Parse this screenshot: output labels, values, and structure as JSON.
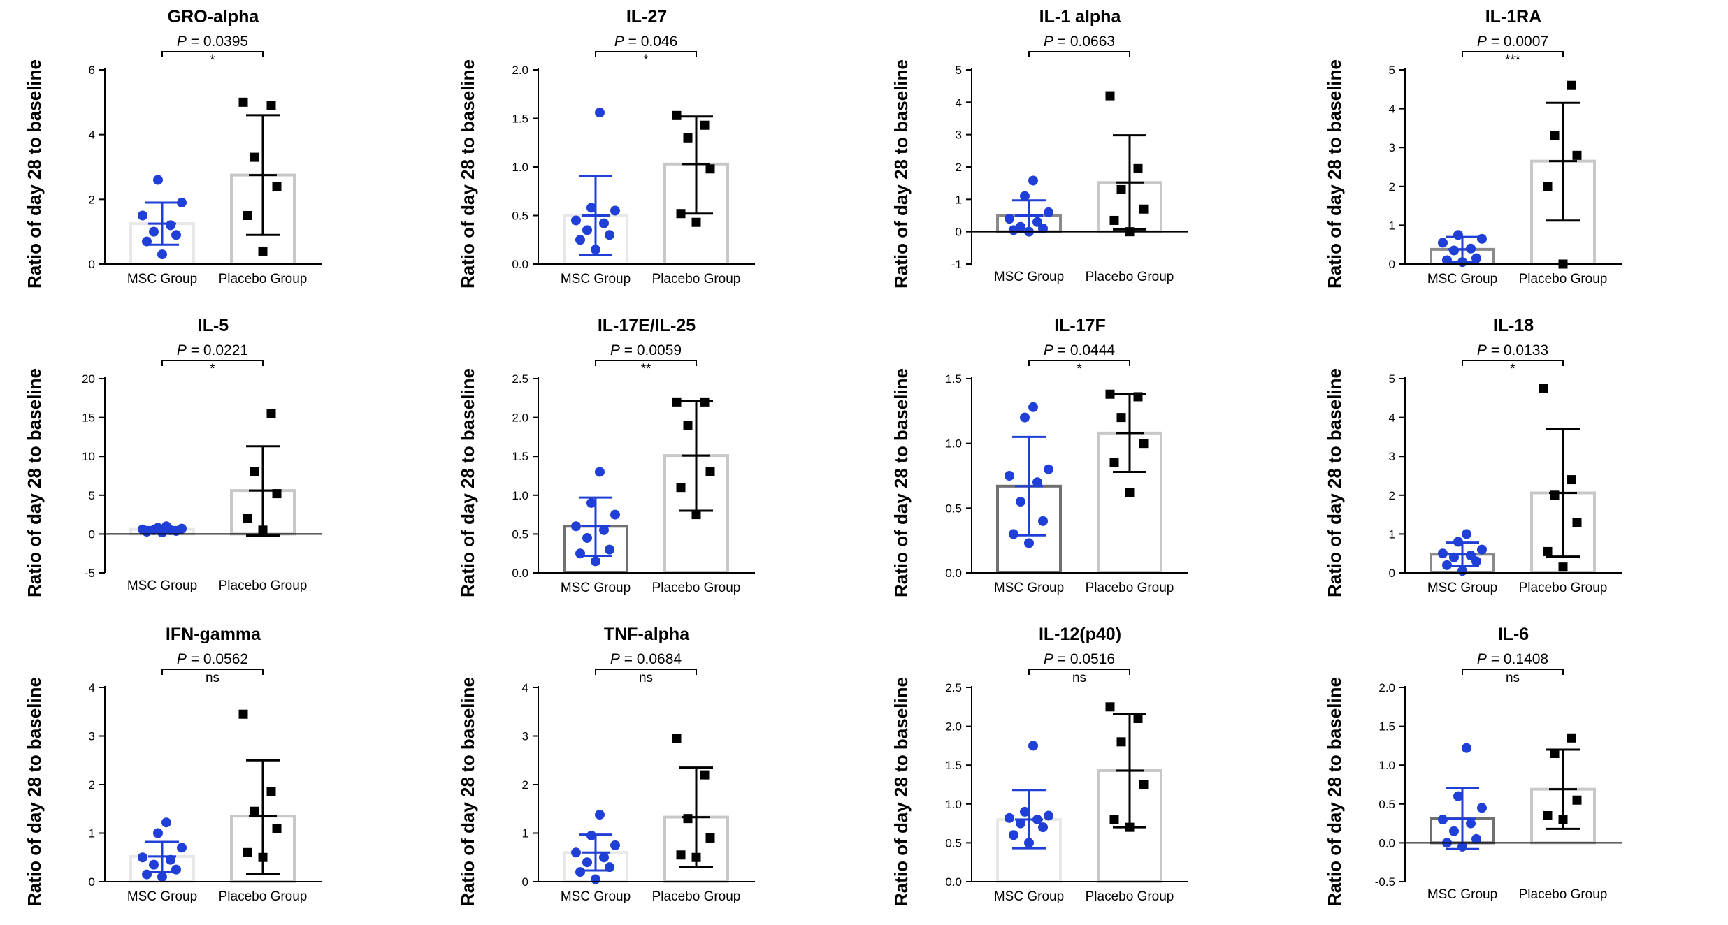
{
  "figure": {
    "y_axis_label": "Ratio of day 28 to baseline",
    "categories": [
      "MSC Group",
      "Placebo Group"
    ],
    "colors": {
      "msc_points": "#1f3fd6",
      "msc_error": "#1f3fd6",
      "placebo_points": "#000000",
      "placebo_error": "#000000"
    }
  },
  "chart_data": [
    {
      "type": "bar",
      "title": "GRO-alpha",
      "ylabel": "Ratio of day 28 to baseline",
      "categories": [
        "MSC Group",
        "Placebo Group"
      ],
      "ylim": [
        0,
        6
      ],
      "yticks": [
        0,
        2,
        4,
        6
      ],
      "tick_labels": [
        "0",
        "2",
        "4",
        "6"
      ],
      "p_prefix": "P",
      "p_text": " = 0.0395",
      "significance": "*",
      "series": [
        {
          "name": "MSC Group",
          "mean": 1.25,
          "sd_low": 0.6,
          "sd_high": 1.9,
          "bar_color": "#e8e8e8",
          "points": [
            0.3,
            0.7,
            0.9,
            1.0,
            1.2,
            1.5,
            1.9,
            2.6
          ]
        },
        {
          "name": "Placebo Group",
          "mean": 2.75,
          "sd_low": 0.9,
          "sd_high": 4.6,
          "bar_color": "#c8c8c8",
          "points": [
            0.4,
            1.5,
            2.4,
            3.3,
            4.9,
            5.0
          ]
        }
      ]
    },
    {
      "type": "bar",
      "title": "IL-27",
      "ylabel": "Ratio of day 28 to baseline",
      "categories": [
        "MSC Group",
        "Placebo Group"
      ],
      "ylim": [
        0,
        2.0
      ],
      "yticks": [
        0,
        0.5,
        1.0,
        1.5,
        2.0
      ],
      "tick_labels": [
        "0.0",
        "0.5",
        "1.0",
        "1.5",
        "2.0"
      ],
      "p_prefix": "P",
      "p_text": " = 0.046",
      "significance": "*",
      "series": [
        {
          "name": "MSC Group",
          "mean": 0.5,
          "sd_low": 0.09,
          "sd_high": 0.91,
          "bar_color": "#e8e8e8",
          "points": [
            0.15,
            0.25,
            0.3,
            0.35,
            0.42,
            0.45,
            0.55,
            0.58,
            1.56
          ]
        },
        {
          "name": "Placebo Group",
          "mean": 1.03,
          "sd_low": 0.52,
          "sd_high": 1.52,
          "bar_color": "#c8c8c8",
          "points": [
            0.43,
            0.52,
            0.98,
            1.3,
            1.43,
            1.53
          ]
        }
      ]
    },
    {
      "type": "bar",
      "title": "IL-1 alpha",
      "ylabel": "Ratio of day 28 to baseline",
      "categories": [
        "MSC Group",
        "Placebo Group"
      ],
      "ylim": [
        -1,
        5
      ],
      "yticks": [
        -1,
        0,
        1,
        2,
        3,
        4,
        5
      ],
      "tick_labels": [
        "-1",
        "0",
        "1",
        "2",
        "3",
        "4",
        "5"
      ],
      "p_prefix": "P",
      "p_text": " = 0.0663",
      "significance": "",
      "series": [
        {
          "name": "MSC Group",
          "mean": 0.5,
          "sd_low": 0.0,
          "sd_high": 0.97,
          "bar_color": "#8a8a8a",
          "points": [
            0.0,
            0.05,
            0.1,
            0.15,
            0.3,
            0.4,
            0.6,
            1.1,
            1.58
          ]
        },
        {
          "name": "Placebo Group",
          "mean": 1.52,
          "sd_low": 0.07,
          "sd_high": 2.98,
          "bar_color": "#c8c8c8",
          "points": [
            0.0,
            0.35,
            0.7,
            1.3,
            1.95,
            4.2
          ]
        }
      ]
    },
    {
      "type": "bar",
      "title": "IL-1RA",
      "ylabel": "Ratio of day 28 to baseline",
      "categories": [
        "MSC Group",
        "Placebo Group"
      ],
      "ylim": [
        0,
        5
      ],
      "yticks": [
        0,
        1,
        2,
        3,
        4,
        5
      ],
      "tick_labels": [
        "0",
        "1",
        "2",
        "3",
        "4",
        "5"
      ],
      "p_prefix": "P",
      "p_text": " = 0.0007",
      "significance": "***",
      "series": [
        {
          "name": "MSC Group",
          "mean": 0.38,
          "sd_low": 0.05,
          "sd_high": 0.7,
          "bar_color": "#8a8a8a",
          "points": [
            0.05,
            0.1,
            0.15,
            0.35,
            0.4,
            0.55,
            0.65,
            0.75
          ]
        },
        {
          "name": "Placebo Group",
          "mean": 2.65,
          "sd_low": 1.12,
          "sd_high": 4.15,
          "bar_color": "#c8c8c8",
          "points": [
            0.0,
            2.0,
            2.8,
            3.3,
            4.6
          ]
        }
      ]
    },
    {
      "type": "bar",
      "title": "IL-5",
      "ylabel": "Ratio of day 28 to baseline",
      "categories": [
        "MSC Group",
        "Placebo Group"
      ],
      "ylim": [
        -5,
        20
      ],
      "yticks": [
        -5,
        0,
        5,
        10,
        15,
        20
      ],
      "tick_labels": [
        "-5",
        "0",
        "5",
        "10",
        "15",
        "20"
      ],
      "p_prefix": "P",
      "p_text": " = 0.0221",
      "significance": "*",
      "series": [
        {
          "name": "MSC Group",
          "mean": 0.6,
          "sd_low": 0.3,
          "sd_high": 0.9,
          "bar_color": "#e8e8e8",
          "points": [
            0.2,
            0.3,
            0.4,
            0.5,
            0.5,
            0.6,
            0.7,
            0.8,
            1.0
          ]
        },
        {
          "name": "Placebo Group",
          "mean": 5.6,
          "sd_low": -0.2,
          "sd_high": 11.3,
          "bar_color": "#c8c8c8",
          "points": [
            0.5,
            2.0,
            5.2,
            8.0,
            15.5
          ]
        }
      ]
    },
    {
      "type": "bar",
      "title": "IL-17E/IL-25",
      "ylabel": "Ratio of day 28 to baseline",
      "categories": [
        "MSC Group",
        "Placebo Group"
      ],
      "ylim": [
        0,
        2.5
      ],
      "yticks": [
        0,
        0.5,
        1.0,
        1.5,
        2.0,
        2.5
      ],
      "tick_labels": [
        "0.0",
        "0.5",
        "1.0",
        "1.5",
        "2.0",
        "2.5"
      ],
      "p_prefix": "P",
      "p_text": " = 0.0059",
      "significance": "**",
      "series": [
        {
          "name": "MSC Group",
          "mean": 0.6,
          "sd_low": 0.22,
          "sd_high": 0.97,
          "bar_color": "#707070",
          "points": [
            0.15,
            0.25,
            0.3,
            0.45,
            0.55,
            0.6,
            0.75,
            0.9,
            1.3
          ]
        },
        {
          "name": "Placebo Group",
          "mean": 1.51,
          "sd_low": 0.8,
          "sd_high": 2.21,
          "bar_color": "#c8c8c8",
          "points": [
            0.75,
            1.1,
            1.3,
            1.9,
            2.2,
            2.2
          ]
        }
      ]
    },
    {
      "type": "bar",
      "title": "IL-17F",
      "ylabel": "Ratio of day 28 to baseline",
      "categories": [
        "MSC Group",
        "Placebo Group"
      ],
      "ylim": [
        0,
        1.5
      ],
      "yticks": [
        0,
        0.5,
        1.0,
        1.5
      ],
      "tick_labels": [
        "0.0",
        "0.5",
        "1.0",
        "1.5"
      ],
      "p_prefix": "P",
      "p_text": " = 0.0444",
      "significance": "*",
      "series": [
        {
          "name": "MSC Group",
          "mean": 0.67,
          "sd_low": 0.29,
          "sd_high": 1.05,
          "bar_color": "#707070",
          "points": [
            0.23,
            0.3,
            0.4,
            0.55,
            0.7,
            0.75,
            0.8,
            1.2,
            1.28
          ]
        },
        {
          "name": "Placebo Group",
          "mean": 1.08,
          "sd_low": 0.78,
          "sd_high": 1.38,
          "bar_color": "#c8c8c8",
          "points": [
            0.62,
            0.85,
            1.0,
            1.2,
            1.36,
            1.38
          ]
        }
      ]
    },
    {
      "type": "bar",
      "title": "IL-18",
      "ylabel": "Ratio of day 28 to baseline",
      "categories": [
        "MSC Group",
        "Placebo Group"
      ],
      "ylim": [
        0,
        5
      ],
      "yticks": [
        0,
        1,
        2,
        3,
        4,
        5
      ],
      "tick_labels": [
        "0",
        "1",
        "2",
        "3",
        "4",
        "5"
      ],
      "p_prefix": "P",
      "p_text": " = 0.0133",
      "significance": "*",
      "series": [
        {
          "name": "MSC Group",
          "mean": 0.48,
          "sd_low": 0.18,
          "sd_high": 0.78,
          "bar_color": "#8a8a8a",
          "points": [
            0.05,
            0.2,
            0.3,
            0.4,
            0.45,
            0.5,
            0.6,
            0.8,
            1.0
          ]
        },
        {
          "name": "Placebo Group",
          "mean": 2.06,
          "sd_low": 0.42,
          "sd_high": 3.7,
          "bar_color": "#c8c8c8",
          "points": [
            0.15,
            0.55,
            1.3,
            2.0,
            2.4,
            4.75
          ]
        }
      ]
    },
    {
      "type": "bar",
      "title": "IFN-gamma",
      "ylabel": "Ratio of day 28 to baseline",
      "categories": [
        "MSC Group",
        "Placebo Group"
      ],
      "ylim": [
        0,
        4
      ],
      "yticks": [
        0,
        1,
        2,
        3,
        4
      ],
      "tick_labels": [
        "0",
        "1",
        "2",
        "3",
        "4"
      ],
      "p_prefix": "P",
      "p_text": " = 0.0562",
      "significance": "ns",
      "series": [
        {
          "name": "MSC Group",
          "mean": 0.52,
          "sd_low": 0.2,
          "sd_high": 0.82,
          "bar_color": "#e8e8e8",
          "points": [
            0.1,
            0.15,
            0.25,
            0.35,
            0.45,
            0.5,
            0.7,
            1.0,
            1.22
          ]
        },
        {
          "name": "Placebo Group",
          "mean": 1.35,
          "sd_low": 0.16,
          "sd_high": 2.5,
          "bar_color": "#c8c8c8",
          "points": [
            0.5,
            0.6,
            1.1,
            1.45,
            1.85,
            3.45
          ]
        }
      ]
    },
    {
      "type": "bar",
      "title": "TNF-alpha",
      "ylabel": "Ratio of day 28 to baseline",
      "categories": [
        "MSC Group",
        "Placebo Group"
      ],
      "ylim": [
        0,
        4
      ],
      "yticks": [
        0,
        1,
        2,
        3,
        4
      ],
      "tick_labels": [
        "0",
        "1",
        "2",
        "3",
        "4"
      ],
      "p_prefix": "P",
      "p_text": " = 0.0684",
      "significance": "ns",
      "series": [
        {
          "name": "MSC Group",
          "mean": 0.6,
          "sd_low": 0.23,
          "sd_high": 0.97,
          "bar_color": "#e8e8e8",
          "points": [
            0.05,
            0.2,
            0.3,
            0.4,
            0.5,
            0.6,
            0.75,
            0.95,
            1.38
          ]
        },
        {
          "name": "Placebo Group",
          "mean": 1.33,
          "sd_low": 0.31,
          "sd_high": 2.35,
          "bar_color": "#c8c8c8",
          "points": [
            0.5,
            0.55,
            0.9,
            1.3,
            2.2,
            2.95
          ]
        }
      ]
    },
    {
      "type": "bar",
      "title": "IL-12(p40)",
      "ylabel": "Ratio of day 28 to baseline",
      "categories": [
        "MSC Group",
        "Placebo Group"
      ],
      "ylim": [
        0,
        2.5
      ],
      "yticks": [
        0,
        0.5,
        1.0,
        1.5,
        2.0,
        2.5
      ],
      "tick_labels": [
        "0.0",
        "0.5",
        "1.0",
        "1.5",
        "2.0",
        "2.5"
      ],
      "p_prefix": "P",
      "p_text": " = 0.0516",
      "significance": "ns",
      "series": [
        {
          "name": "MSC Group",
          "mean": 0.8,
          "sd_low": 0.43,
          "sd_high": 1.18,
          "bar_color": "#e8e8e8",
          "points": [
            0.5,
            0.6,
            0.7,
            0.75,
            0.8,
            0.82,
            0.85,
            0.9,
            1.75
          ]
        },
        {
          "name": "Placebo Group",
          "mean": 1.43,
          "sd_low": 0.7,
          "sd_high": 2.16,
          "bar_color": "#c8c8c8",
          "points": [
            0.7,
            0.8,
            1.25,
            1.8,
            2.1,
            2.25
          ]
        }
      ]
    },
    {
      "type": "bar",
      "title": "IL-6",
      "ylabel": "Ratio of day 28 to baseline",
      "categories": [
        "MSC Group",
        "Placebo Group"
      ],
      "ylim": [
        -0.5,
        2.0
      ],
      "yticks": [
        -0.5,
        0,
        0.5,
        1.0,
        1.5,
        2.0
      ],
      "tick_labels": [
        "-0.5",
        "0.0",
        "0.5",
        "1.0",
        "1.5",
        "2.0"
      ],
      "p_prefix": "P",
      "p_text": " = 0.1408",
      "significance": "ns",
      "series": [
        {
          "name": "MSC Group",
          "mean": 0.31,
          "sd_low": -0.08,
          "sd_high": 0.7,
          "bar_color": "#707070",
          "points": [
            -0.05,
            0.0,
            0.05,
            0.15,
            0.25,
            0.3,
            0.45,
            0.6,
            1.22
          ]
        },
        {
          "name": "Placebo Group",
          "mean": 0.69,
          "sd_low": 0.18,
          "sd_high": 1.2,
          "bar_color": "#c8c8c8",
          "points": [
            0.3,
            0.35,
            0.55,
            1.15,
            1.35
          ]
        }
      ]
    }
  ]
}
